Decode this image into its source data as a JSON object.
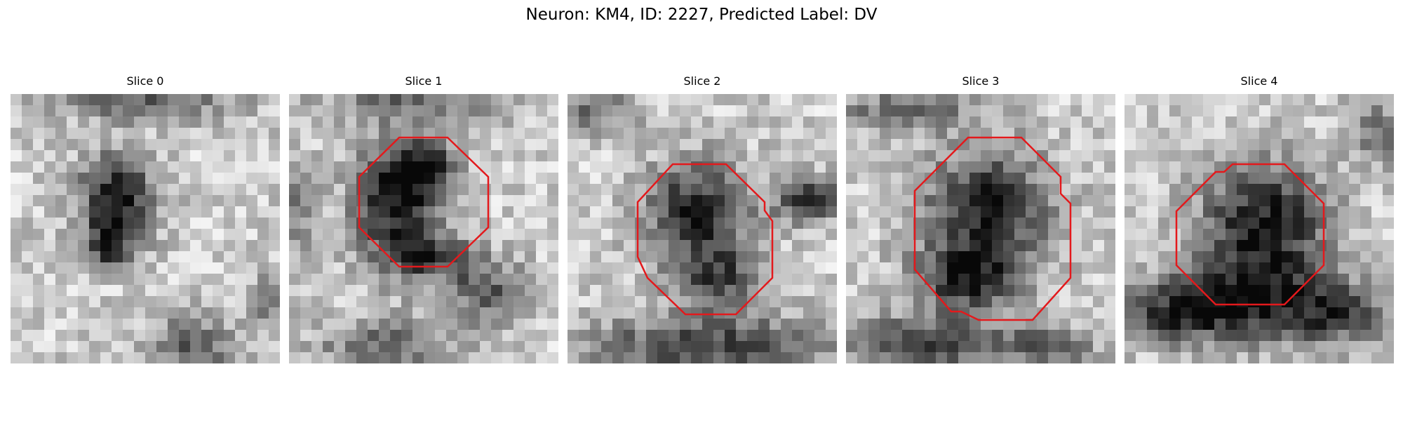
{
  "figure": {
    "title": "Neuron: KM4, ID: 2227, Predicted Label: DV"
  },
  "slices": [
    {
      "title": "Slice 0",
      "has_contour": false
    },
    {
      "title": "Slice 1",
      "has_contour": true
    },
    {
      "title": "Slice 2",
      "has_contour": true
    },
    {
      "title": "Slice 3",
      "has_contour": true
    },
    {
      "title": "Slice 4",
      "has_contour": true
    }
  ],
  "colors": {
    "contour": "#e3191c",
    "background": "#ffffff"
  }
}
